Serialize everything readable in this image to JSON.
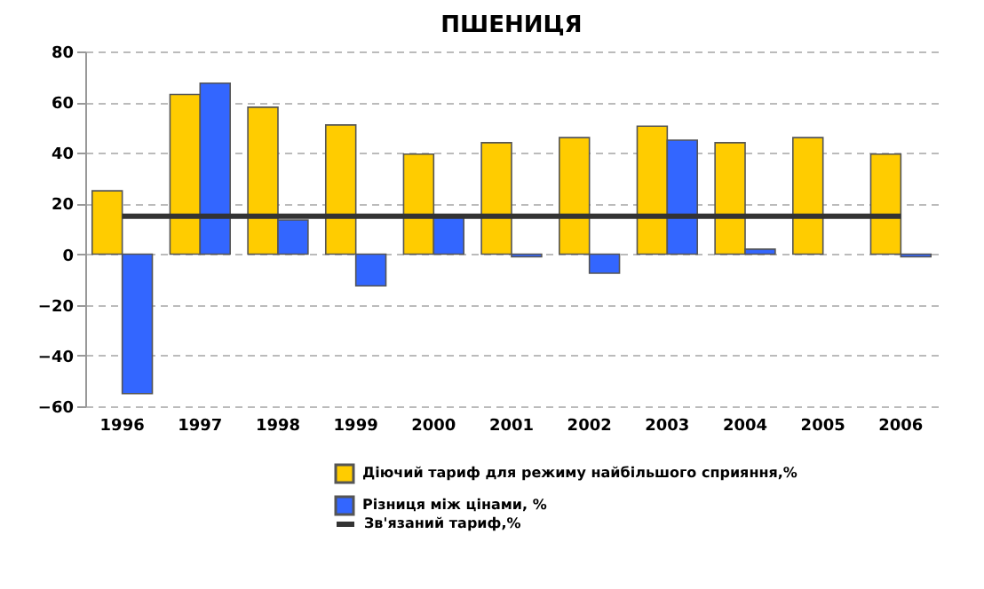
{
  "chart_data": {
    "type": "bar",
    "title": "ПШЕНИЦЯ",
    "categories": [
      "1996",
      "1997",
      "1998",
      "1999",
      "2000",
      "2001",
      "2002",
      "2003",
      "2004",
      "2005",
      "2006"
    ],
    "series": [
      {
        "name": "Діючий тариф для режиму найбільшого сприяння,%",
        "color": "#ffcc00",
        "type": "bar",
        "values": [
          25,
          63,
          58,
          51,
          39.5,
          44,
          46,
          50.5,
          44,
          46,
          39.5
        ]
      },
      {
        "name": "Різниця між цінами, %",
        "color": "#3366ff",
        "type": "bar",
        "values": [
          -55,
          67.5,
          13.5,
          -12.5,
          14.5,
          -1,
          -7.5,
          45,
          2,
          null,
          -1
        ]
      },
      {
        "name": "Зв'язаний тариф,%",
        "color": "#333333",
        "type": "line",
        "values": [
          15,
          15,
          15,
          15,
          15,
          15,
          15,
          15,
          15,
          15,
          15
        ]
      }
    ],
    "ylim": [
      -60,
      80
    ],
    "yticks": [
      -60,
      -40,
      -20,
      0,
      20,
      40,
      60,
      80
    ],
    "grid": "y",
    "legend": "bottom",
    "marker": "none",
    "line_style": "solid"
  }
}
